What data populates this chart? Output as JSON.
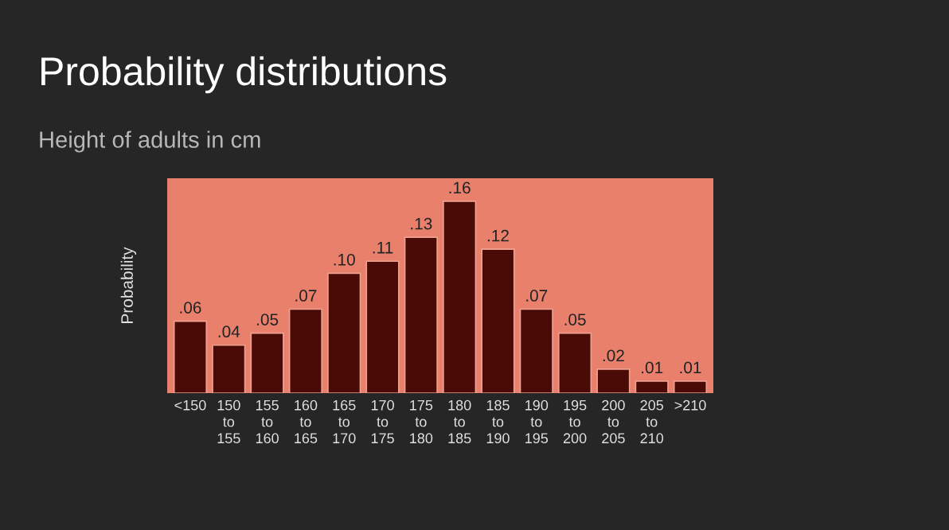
{
  "chart_data": {
    "type": "bar",
    "title": "Probability distributions",
    "subtitle": "Height of adults in cm",
    "ylabel": "Probability",
    "categories": [
      "<150",
      "150\nto\n155",
      "155\nto\n160",
      "160\nto\n165",
      "165\nto\n170",
      "170\nto\n175",
      "175\nto\n180",
      "180\nto\n185",
      "185\nto\n190",
      "190\nto\n195",
      "195\nto\n200",
      "200\nto\n205",
      "205\nto\n210",
      ">210"
    ],
    "values": [
      0.06,
      0.04,
      0.05,
      0.07,
      0.1,
      0.11,
      0.13,
      0.16,
      0.12,
      0.07,
      0.05,
      0.02,
      0.01,
      0.01
    ],
    "value_labels": [
      ".06",
      ".04",
      ".05",
      ".07",
      ".10",
      ".11",
      ".13",
      ".16",
      ".12",
      ".07",
      ".05",
      ".02",
      ".01",
      ".01"
    ],
    "color": "#4a0a06",
    "grid": false
  }
}
